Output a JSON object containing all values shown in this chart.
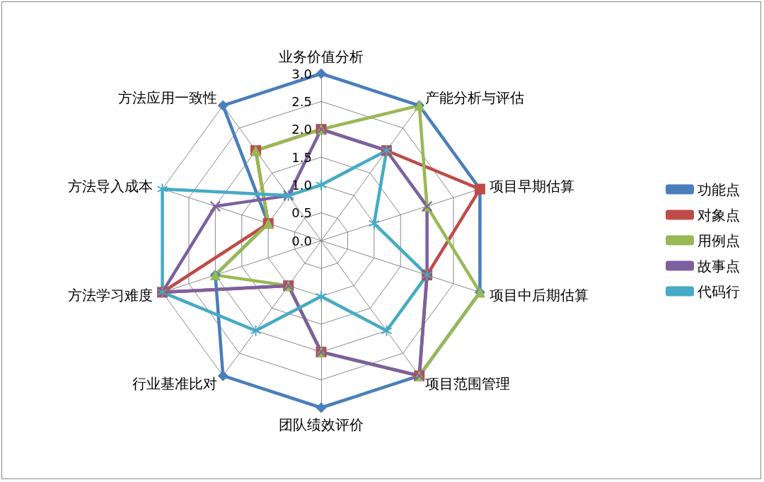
{
  "chart_data": {
    "type": "radar",
    "categories": [
      "业务价值分析",
      "产能分析与评估",
      "项目早期估算",
      "项目中后期估算",
      "项目范围管理",
      "团队绩效评价",
      "行业基准比对",
      "方法学习难度",
      "方法导入成本",
      "方法应用一致性"
    ],
    "ylim": [
      0,
      3
    ],
    "yticks": [
      {
        "value": 0,
        "label": "0.0"
      },
      {
        "value": 0.5,
        "label": "0.5"
      },
      {
        "value": 1,
        "label": "1.0"
      },
      {
        "value": 1.5,
        "label": "1.5"
      },
      {
        "value": 2,
        "label": "2.0"
      },
      {
        "value": 2.5,
        "label": "2.5"
      },
      {
        "value": 3,
        "label": "3.0"
      }
    ],
    "grid": true,
    "legend": "right",
    "line_style": "solid",
    "series": [
      {
        "name": "功能点",
        "color": "#4a7ebb",
        "marker": "diamond",
        "values": [
          3,
          3,
          3,
          3,
          3,
          3,
          3,
          2,
          1,
          3
        ]
      },
      {
        "name": "对象点",
        "color": "#be4b48",
        "marker": "square",
        "values": [
          2,
          2,
          3,
          2,
          3,
          2,
          1,
          3,
          1,
          2
        ]
      },
      {
        "name": "用例点",
        "color": "#98b954",
        "marker": "triangle",
        "values": [
          2,
          3,
          2,
          3,
          3,
          2,
          1,
          2,
          1,
          2
        ]
      },
      {
        "name": "故事点",
        "color": "#7d60a0",
        "marker": "cross",
        "values": [
          2,
          2,
          2,
          2,
          3,
          2,
          1,
          3,
          2,
          1
        ]
      },
      {
        "name": "代码行",
        "color": "#46aac5",
        "marker": "star",
        "values": [
          1,
          2,
          1,
          2,
          2,
          1,
          2,
          3,
          3,
          1
        ]
      }
    ]
  }
}
